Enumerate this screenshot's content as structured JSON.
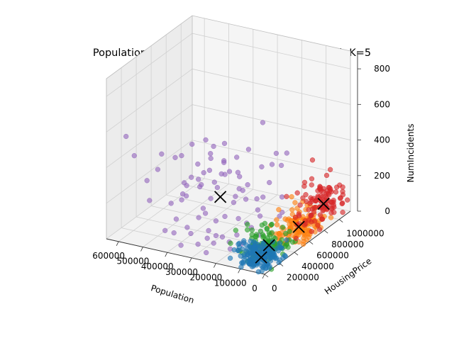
{
  "chart_data": {
    "type": "scatter3d",
    "title": "Population vs HousingPrice vs NumIncidents with K=5",
    "xlabel": "Population",
    "ylabel": "HousingPrice",
    "zlabel": "NumIncidents",
    "xlim": [
      0,
      650000
    ],
    "ylim": [
      0,
      1150000
    ],
    "zlim": [
      0,
      900
    ],
    "xticks": [
      "600000",
      "500000",
      "400000",
      "300000",
      "200000",
      "100000",
      "0"
    ],
    "yticks": [
      "0",
      "200000",
      "400000",
      "600000",
      "800000",
      "1000000"
    ],
    "zticks": [
      "0",
      "200",
      "400",
      "600",
      "800"
    ],
    "grid": true,
    "centroid_marker": "x",
    "centroid_color": "#000000",
    "clusters": [
      {
        "color": "#1f77b4",
        "centroid": [
          60000,
          150000,
          30
        ],
        "spread": [
          40000,
          90000,
          40
        ],
        "count": 170,
        "points": [
          [
            5000,
            80000,
            10
          ],
          [
            120000,
            40000,
            120
          ],
          [
            40000,
            260000,
            20
          ],
          [
            150000,
            150000,
            60
          ]
        ]
      },
      {
        "color": "#ff7f0e",
        "centroid": [
          50000,
          620000,
          60
        ],
        "spread": [
          40000,
          120000,
          40
        ],
        "count": 130,
        "points": [
          [
            80000,
            450000,
            200
          ],
          [
            20000,
            780000,
            30
          ],
          [
            100000,
            700000,
            90
          ]
        ]
      },
      {
        "color": "#2ca02c",
        "centroid": [
          80000,
          320000,
          40
        ],
        "spread": [
          45000,
          90000,
          45
        ],
        "count": 110,
        "points": [
          [
            180000,
            200000,
            130
          ],
          [
            150000,
            380000,
            60
          ]
        ]
      },
      {
        "color": "#d62728",
        "centroid": [
          40000,
          920000,
          100
        ],
        "spread": [
          40000,
          110000,
          60
        ],
        "count": 110,
        "points": [
          [
            110000,
            1000000,
            300
          ],
          [
            70000,
            860000,
            250
          ]
        ]
      },
      {
        "color": "#9467bd",
        "centroid": [
          280000,
          320000,
          250
        ],
        "spread": [
          130000,
          220000,
          160
        ],
        "count": 80,
        "points": [
          [
            600000,
            100000,
            560
          ],
          [
            560000,
            80000,
            470
          ],
          [
            520000,
            120000,
            330
          ],
          [
            380000,
            450000,
            500
          ],
          [
            250000,
            600000,
            440
          ]
        ]
      }
    ]
  }
}
